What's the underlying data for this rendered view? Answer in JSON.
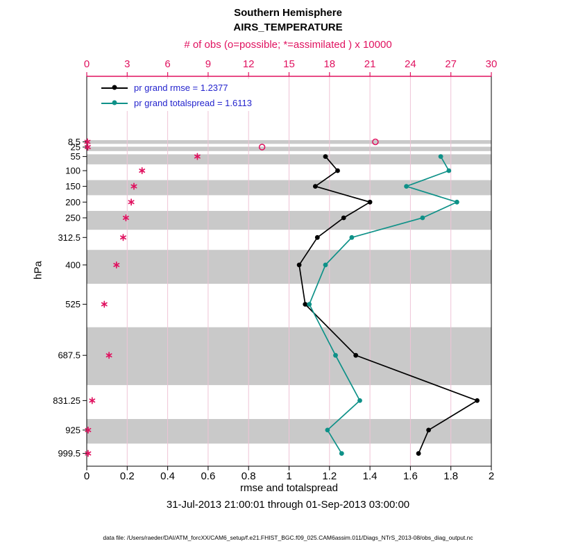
{
  "header": {
    "title": "Southern Hemisphere",
    "subtitle": "AIRS_TEMPERATURE"
  },
  "legend": {
    "items": [
      {
        "label": "pr grand rmse = 1.2377",
        "color": "#000000"
      },
      {
        "label": "pr grand totalspread = 1.6113",
        "color": "#0e9188"
      }
    ]
  },
  "footer": {
    "date_range": "31-Jul-2013 21:00:01 through 01-Sep-2013 03:00:00",
    "data_file": "data file: /Users/raeder/DAI/ATM_forcXX/CAM6_setup/f.e21.FHIST_BGC.f09_025.CAM6assim.011/Diags_NTrS_2013-08/obs_diag_output.nc"
  },
  "colors": {
    "magenta": "#e0115f",
    "teal": "#0e9188",
    "black": "#000000",
    "legend_text": "#2323cd",
    "band": "#c9c9c9",
    "grid": "#efc3d6",
    "border": "#000000"
  },
  "chart_data": {
    "type": "line",
    "title": "Southern Hemisphere AIRS_TEMPERATURE",
    "xlabel": "rmse and totalspread",
    "ylabel": "hPa",
    "top_axis_label": "# of obs (o=possible; *=assimilated ) x 10000",
    "xlim": [
      0,
      2
    ],
    "top_xlim": [
      0,
      30
    ],
    "ylim_pressure": [
      1040,
      -200
    ],
    "grid": "vertical only",
    "legend_position": "top-left inside",
    "x_ticks_bottom": [
      0,
      0.2,
      0.4,
      0.6,
      0.8,
      1,
      1.2,
      1.4,
      1.6,
      1.8,
      2
    ],
    "x_tick_labels_bottom": [
      "0",
      "0.2",
      "0.4",
      "0.6",
      "0.8",
      "1",
      "1.2",
      "1.4",
      "1.6",
      "1.8",
      "2"
    ],
    "x_ticks_top": [
      0,
      3,
      6,
      9,
      12,
      15,
      18,
      21,
      24,
      27,
      30
    ],
    "pressure_levels": [
      8.5,
      25,
      55,
      100,
      150,
      200,
      250,
      312.5,
      400,
      525,
      687.5,
      831.25,
      925,
      999.5
    ],
    "pressure_tick_labels": [
      "8.5",
      "25",
      "55",
      "100",
      "150",
      "200",
      "250",
      "312.5",
      "400",
      "525",
      "687.5",
      "831.25",
      "925",
      "999.5"
    ],
    "shaded_bands_hpa": [
      [
        3,
        15
      ],
      [
        24,
        38
      ],
      [
        48,
        80
      ],
      [
        130,
        178
      ],
      [
        228,
        288
      ],
      [
        352,
        460
      ],
      [
        598,
        782
      ],
      [
        890,
        968
      ]
    ],
    "series": [
      {
        "key": "rmse",
        "name": "pr grand rmse",
        "legend": "pr grand rmse = 1.2377",
        "axis": "bottom",
        "marker": "filled-circle",
        "color_key": "black",
        "points": [
          {
            "p": 55,
            "v": 1.18
          },
          {
            "p": 100,
            "v": 1.24
          },
          {
            "p": 150,
            "v": 1.13
          },
          {
            "p": 200,
            "v": 1.4
          },
          {
            "p": 250,
            "v": 1.27
          },
          {
            "p": 312.5,
            "v": 1.14
          },
          {
            "p": 400,
            "v": 1.05
          },
          {
            "p": 525,
            "v": 1.08
          },
          {
            "p": 687.5,
            "v": 1.33
          },
          {
            "p": 831.25,
            "v": 1.93
          },
          {
            "p": 925,
            "v": 1.69
          },
          {
            "p": 999.5,
            "v": 1.64
          }
        ]
      },
      {
        "key": "totalspread",
        "name": "pr grand totalspread",
        "legend": "pr grand totalspread = 1.6113",
        "axis": "bottom",
        "marker": "filled-circle",
        "color_key": "teal",
        "points": [
          {
            "p": 55,
            "v": 1.75
          },
          {
            "p": 100,
            "v": 1.79
          },
          {
            "p": 150,
            "v": 1.58
          },
          {
            "p": 200,
            "v": 1.83
          },
          {
            "p": 250,
            "v": 1.66
          },
          {
            "p": 312.5,
            "v": 1.31
          },
          {
            "p": 400,
            "v": 1.18
          },
          {
            "p": 525,
            "v": 1.1
          },
          {
            "p": 687.5,
            "v": 1.23
          },
          {
            "p": 831.25,
            "v": 1.35
          },
          {
            "p": 925,
            "v": 1.19
          },
          {
            "p": 999.5,
            "v": 1.26
          }
        ]
      },
      {
        "key": "assimilated",
        "name": "assimilated obs count x 10000",
        "axis": "top",
        "marker": "asterisk",
        "color_key": "magenta",
        "points": [
          {
            "p": 8.5,
            "v": 0.05
          },
          {
            "p": 25,
            "v": 0.07
          },
          {
            "p": 55,
            "v": 8.2
          },
          {
            "p": 100,
            "v": 4.1
          },
          {
            "p": 150,
            "v": 3.5
          },
          {
            "p": 200,
            "v": 3.3
          },
          {
            "p": 250,
            "v": 2.9
          },
          {
            "p": 312.5,
            "v": 2.7
          },
          {
            "p": 400,
            "v": 2.2
          },
          {
            "p": 525,
            "v": 1.3
          },
          {
            "p": 687.5,
            "v": 1.65
          },
          {
            "p": 831.25,
            "v": 0.4
          },
          {
            "p": 925,
            "v": 0.1
          },
          {
            "p": 999.5,
            "v": 0.1
          }
        ]
      },
      {
        "key": "possible",
        "name": "possible obs count x 10000",
        "axis": "top",
        "marker": "open-circle",
        "color_key": "magenta",
        "points": [
          {
            "p": 8.5,
            "v": 21.4
          },
          {
            "p": 25,
            "v": 13.0
          }
        ]
      }
    ]
  }
}
